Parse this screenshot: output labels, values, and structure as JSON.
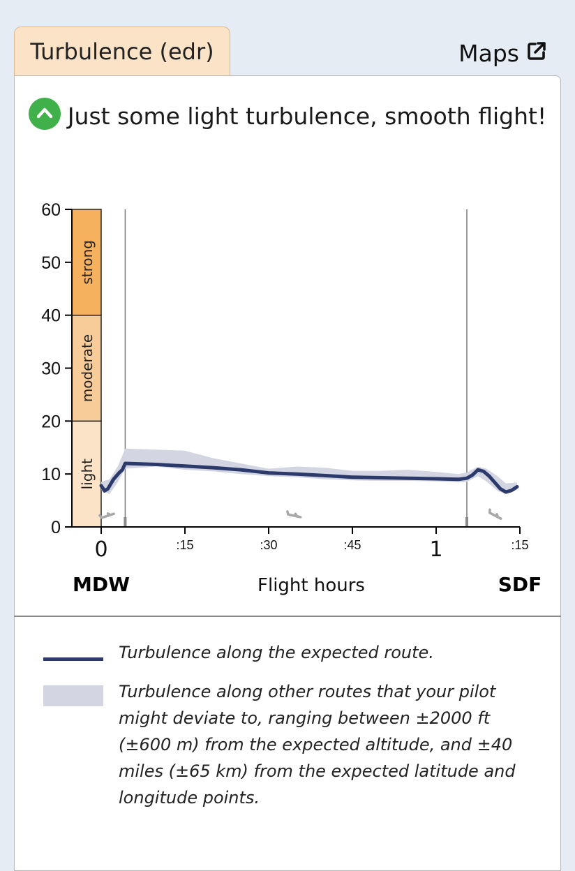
{
  "tab": {
    "label": "Turbulence (edr)"
  },
  "maps_link": {
    "label": "Maps",
    "icon": "external-link-icon"
  },
  "headline": {
    "icon": "chevron-up-icon",
    "icon_color": "#3fb04a",
    "text": "Just some light turbulence, smooth flight!"
  },
  "chart_data": {
    "type": "line",
    "xlabel": "Flight hours",
    "origin_label": "MDW",
    "destination_label": "SDF",
    "x_ticks": [
      "0",
      ":15",
      ":30",
      ":45",
      "1",
      ":15"
    ],
    "x_tick_minutes": [
      0,
      15,
      30,
      45,
      60,
      75
    ],
    "xlim": [
      -2.5,
      75
    ],
    "ylim": [
      0,
      60
    ],
    "y_ticks": [
      0,
      10,
      20,
      30,
      40,
      50,
      60
    ],
    "bands": [
      {
        "label": "light",
        "from": 0,
        "to": 20,
        "color": "#fbe3c8"
      },
      {
        "label": "moderate",
        "from": 20,
        "to": 40,
        "color": "#f8cc98"
      },
      {
        "label": "strong",
        "from": 40,
        "to": 60,
        "color": "#f6b15f"
      }
    ],
    "phase_markers_minutes": [
      4.3,
      65.5
    ],
    "series": [
      {
        "name": "Turbulence along the expected route.",
        "color": "#2b3a6b",
        "x": [
          0,
          0.6,
          1.2,
          2.2,
          3.2,
          3.8,
          4.3,
          10,
          15,
          20,
          25,
          30,
          35,
          40,
          45,
          50,
          55,
          60,
          64,
          65.5,
          66.5,
          67.5,
          68.5,
          69.5,
          70.5,
          71.5,
          72.5,
          73.5,
          74.5
        ],
        "values": [
          7.8,
          6.8,
          7.2,
          9.0,
          10.2,
          10.8,
          12,
          11.8,
          11.5,
          11.2,
          10.8,
          10.2,
          10.0,
          9.7,
          9.4,
          9.3,
          9.2,
          9.1,
          9.0,
          9.2,
          9.8,
          10.8,
          10.5,
          9.6,
          8.4,
          7.2,
          6.6,
          6.9,
          7.6
        ]
      },
      {
        "name": "Turbulence along other routes that your pilot might deviate to, ranging between ±2000 ft (±600 m) from the expected altitude, and ±40 miles (±65 km) from the expected latitude and longitude points.",
        "type": "range",
        "color": "#d3d6e2",
        "x": [
          0,
          1.5,
          3,
          4.3,
          10,
          15,
          20,
          25,
          30,
          35,
          40,
          45,
          50,
          55,
          60,
          64,
          65.5,
          67.5,
          69,
          71,
          72.5,
          74.5
        ],
        "upper": [
          8.5,
          9.0,
          11.5,
          14.8,
          14.6,
          14.4,
          13.0,
          12.0,
          11.0,
          11.4,
          11.2,
          10.6,
          10.6,
          10.8,
          10.4,
          10.0,
          10.3,
          11.4,
          11.0,
          9.6,
          8.2,
          8.4
        ],
        "lower": [
          7.0,
          6.2,
          8.5,
          11.0,
          11.4,
          10.8,
          10.5,
          10.0,
          9.6,
          9.4,
          9.0,
          8.8,
          8.7,
          8.7,
          8.6,
          8.4,
          8.5,
          9.6,
          8.6,
          6.8,
          6.2,
          7.0
        ]
      }
    ],
    "aircraft_icons_minutes": [
      1.2,
      34.6,
      70.6
    ],
    "aircraft_icon": "plane-icon",
    "aircraft_color": "#a8a8a8"
  },
  "legend": [
    {
      "kind": "line",
      "text": "Turbulence along the expected route."
    },
    {
      "kind": "band",
      "text": "Turbulence along other routes that your pilot might deviate to, ranging between ±2000 ft (±600 m) from the expected altitude, and ±40 miles (±65 km) from the expected latitude and longitude points."
    }
  ]
}
